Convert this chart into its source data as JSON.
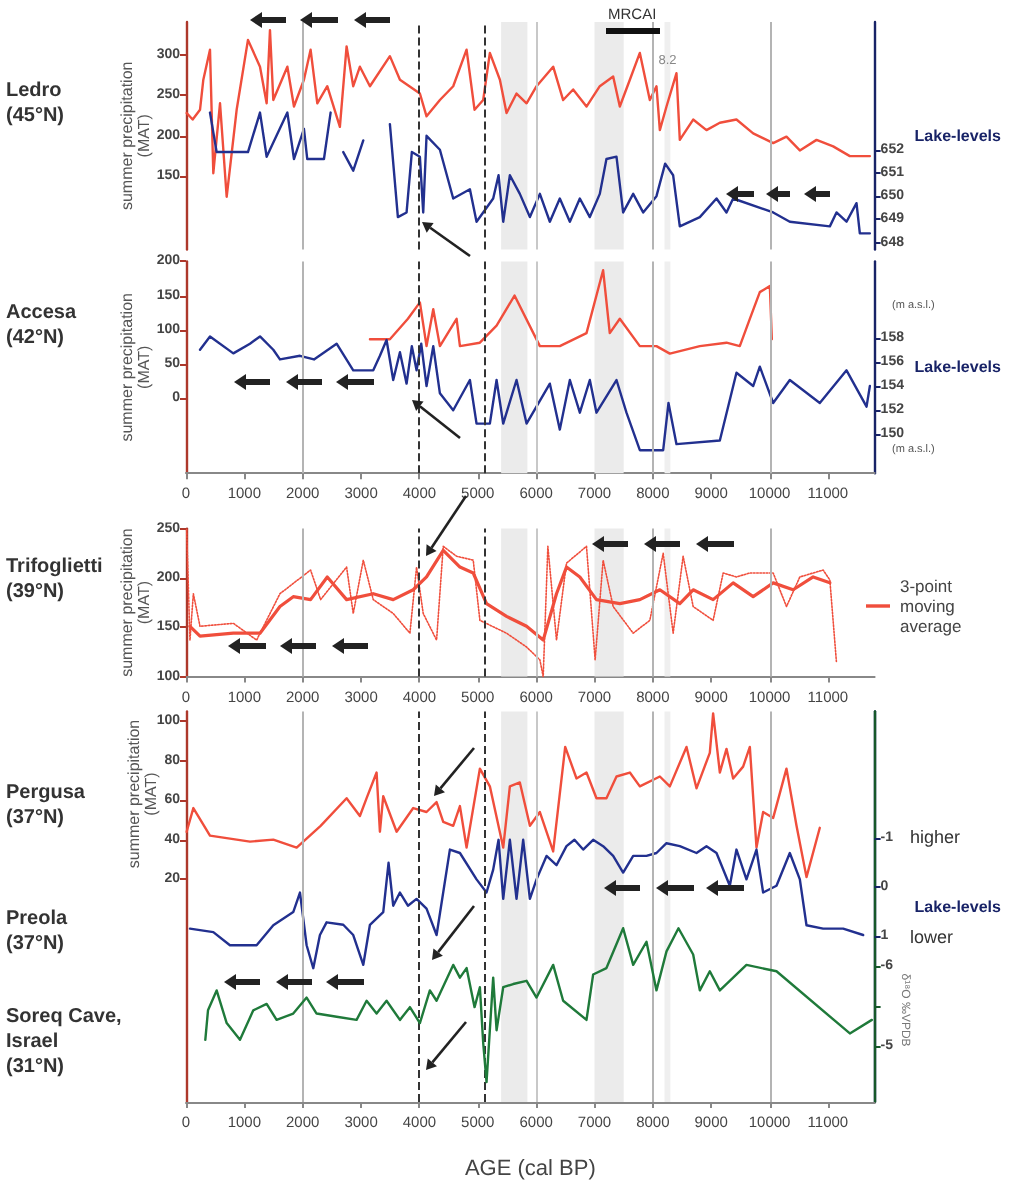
{
  "chart_data": [
    {
      "type": "line",
      "title": "Ledro (45°N)",
      "ylabel": "summer precipitation (MAT)",
      "y2label": "Lake-levels",
      "annotations": [
        "MRCAI"
      ],
      "tick_labels": "y",
      "xlim": [
        0,
        11800
      ],
      "ylim": [
        60,
        340
      ],
      "yticks": [
        150,
        200,
        250,
        300
      ],
      "y2lim": [
        647.7,
        657.5
      ],
      "y2ticks": [
        648,
        649,
        650,
        651,
        652
      ],
      "series": [
        {
          "color": "#f04e3c",
          "x": [
            11,
            114,
            240,
            297,
            411,
            468,
            583,
            697,
            868,
            1062,
            1268,
            1382,
            1439,
            1496,
            1737,
            1850,
            2021,
            2135,
            2250,
            2421,
            2637,
            2752,
            2866,
            2980,
            3152,
            3494,
            3666,
            4008,
            4122,
            4351,
            4579,
            4808,
            4945,
            5093,
            5207,
            5379,
            5493,
            5664,
            5836,
            6007,
            6292,
            6463,
            6634,
            6863,
            7091,
            7320,
            7434,
            7606,
            7777,
            7948,
            8062,
            8120,
            8234,
            8405,
            8462,
            8691,
            8919,
            9148,
            9433,
            9719,
            10062,
            10290,
            10519,
            10805,
            11090,
            11376,
            11719
          ],
          "values": [
            228,
            220,
            232,
            269,
            306,
            154,
            240,
            125,
            232,
            318,
            285,
            240,
            330,
            244,
            285,
            236,
            269,
            306,
            240,
            261,
            211,
            310,
            261,
            285,
            261,
            298,
            269,
            252,
            224,
            244,
            261,
            306,
            232,
            244,
            302,
            269,
            228,
            252,
            240,
            261,
            285,
            244,
            257,
            236,
            261,
            273,
            236,
            269,
            302,
            244,
            261,
            207,
            236,
            277,
            195,
            220,
            207,
            216,
            220,
            203,
            191,
            199,
            182,
            195,
            187,
            175,
            175
          ]
        },
        {
          "color": "#22308f",
          "axis": "y2",
          "x": [
            411,
            525,
            1062,
            1268,
            1382,
            1737,
            1850,
            2021,
            2078,
            2364,
            2478,
            2580,
            2695,
            2866,
            3038,
            3250,
            3494,
            3631,
            3780,
            3870,
            4008,
            4065,
            4122,
            4351,
            4579,
            4865,
            4979,
            5264,
            5356,
            5436,
            5550,
            5721,
            5893,
            6064,
            6235,
            6406,
            6578,
            6749,
            6920,
            7091,
            7205,
            7377,
            7491,
            7663,
            7834,
            8062,
            8211,
            8348,
            8462,
            8805,
            9091,
            9262,
            9376,
            10062,
            10347,
            11033,
            11147,
            11319,
            11490,
            11547,
            11719
          ],
          "values": [
            653.6,
            651.9,
            651.9,
            653.6,
            651.7,
            653.6,
            651.6,
            652.9,
            651.6,
            651.6,
            653.6,
            null,
            651.9,
            651.1,
            652.4,
            null,
            653.1,
            649.1,
            649.3,
            651.9,
            651.7,
            649.3,
            652.6,
            652,
            649.9,
            650.3,
            648.9,
            649.9,
            650.9,
            648.9,
            650.9,
            650.1,
            649.1,
            650.1,
            648.9,
            649.9,
            648.9,
            649.9,
            649.1,
            650.1,
            651.6,
            651.7,
            649.3,
            650.1,
            649.3,
            650,
            651.4,
            650.9,
            648.7,
            649.1,
            649.9,
            649.3,
            649.9,
            649.3,
            648.9,
            648.7,
            649.3,
            648.9,
            649.7,
            648.4,
            648.4
          ]
        }
      ],
      "ref_lines": [
        {
          "axis": "x",
          "value": 2000,
          "color": "#b4b4b4"
        },
        {
          "axis": "x",
          "value": 6000,
          "color": "#c8c8c8"
        },
        {
          "axis": "x",
          "value": 8000,
          "color": "#b4b4b4"
        },
        {
          "axis": "x",
          "value": 10000,
          "color": "#b4b4b4"
        },
        {
          "axis": "x",
          "value": 4000,
          "color": "#333333",
          "line_style": "dashed"
        },
        {
          "axis": "x",
          "value": 5100,
          "color": "#333333",
          "line_style": "dashed"
        }
      ],
      "bands": [
        {
          "axis": "x",
          "from": 5400,
          "to": 5850,
          "color": "#ebebeb"
        },
        {
          "axis": "x",
          "from": 7000,
          "to": 7500,
          "color": "#ebebeb"
        },
        {
          "axis": "x",
          "from": 8200,
          "to": 8300,
          "color": "#efefef",
          "label": "8.2"
        }
      ]
    },
    {
      "type": "line",
      "title": "Accesa (42°N)",
      "ylabel": "summer precipitation (MAT)",
      "y2label": "Lake-levels",
      "annotations": [
        "(m a.s.l.)",
        "(m a.s.l.)"
      ],
      "xlim": [
        0,
        11800
      ],
      "xticks": [
        0,
        1000,
        2000,
        3000,
        4000,
        5000,
        6000,
        7000,
        8000,
        9000,
        10000,
        11000
      ],
      "ylim": [
        -110,
        200
      ],
      "yticks": [
        0,
        50,
        100,
        150,
        200
      ],
      "y2lim": [
        146.8,
        164.3
      ],
      "y2ticks": [
        150,
        152,
        154,
        156,
        158
      ],
      "series": [
        {
          "color": "#f04e3c",
          "x": [
            3152,
            3494,
            3803,
            4008,
            4122,
            4237,
            4351,
            4637,
            4694,
            5036,
            5322,
            5630,
            6064,
            6406,
            6863,
            7148,
            7262,
            7434,
            7777,
            8062,
            8291,
            8805,
            9262,
            9490,
            9662,
            9833,
            10005,
            10039
          ],
          "values": [
            86,
            86,
            116,
            140,
            76,
            130,
            76,
            116,
            76,
            81,
            106,
            150,
            76,
            76,
            95,
            187,
            95,
            116,
            76,
            76,
            65,
            76,
            81,
            76,
            116,
            155,
            164,
            86
          ]
        },
        {
          "color": "#22308f",
          "axis": "y2",
          "x": [
            240,
            411,
            811,
            1096,
            1268,
            1496,
            1610,
            1953,
            2193,
            2581,
            2866,
            3209,
            3323,
            3437,
            3551,
            3666,
            3780,
            3870,
            3951,
            4031,
            4122,
            4237,
            4351,
            4579,
            4865,
            4979,
            5207,
            5322,
            5436,
            5664,
            5836,
            6235,
            6406,
            6578,
            6749,
            6920,
            7034,
            7377,
            7548,
            7777,
            8177,
            8268,
            8405,
            9148,
            9433,
            9719,
            9833,
            10062,
            10347,
            10861,
            11319,
            11662,
            11719
          ],
          "values": [
            157,
            158.1,
            156.7,
            157.5,
            158.1,
            157,
            156.2,
            156.5,
            156.2,
            157.5,
            155.3,
            155.3,
            156.5,
            157.8,
            154.5,
            156.8,
            154.2,
            157.3,
            155.3,
            157.5,
            154,
            157.3,
            153.4,
            152,
            154.5,
            150.9,
            150.9,
            154.5,
            150.9,
            154.5,
            150.9,
            154.2,
            150.4,
            154.5,
            151.8,
            154.5,
            151.8,
            154.5,
            151.8,
            148.7,
            148.7,
            152.6,
            149.2,
            149.5,
            155.1,
            154,
            155.6,
            152.6,
            154.5,
            152.6,
            155.3,
            152.3,
            154
          ]
        }
      ],
      "ref_lines": [
        {
          "axis": "x",
          "value": 2000,
          "color": "#b4b4b4"
        },
        {
          "axis": "x",
          "value": 6000,
          "color": "#c8c8c8"
        },
        {
          "axis": "x",
          "value": 8000,
          "color": "#b4b4b4"
        },
        {
          "axis": "x",
          "value": 10000,
          "color": "#b4b4b4"
        },
        {
          "axis": "x",
          "value": 4000,
          "color": "#333333",
          "line_style": "dashed"
        },
        {
          "axis": "x",
          "value": 5100,
          "color": "#333333",
          "line_style": "dashed"
        }
      ],
      "bands": [
        {
          "axis": "x",
          "from": 5400,
          "to": 5850,
          "color": "#ebebeb"
        },
        {
          "axis": "x",
          "from": 7000,
          "to": 7500,
          "color": "#ebebeb"
        },
        {
          "axis": "x",
          "from": 8200,
          "to": 8300,
          "color": "#efefef"
        }
      ]
    },
    {
      "type": "line",
      "title": "Trifoglietti (39°N)",
      "ylabel": "summer precipitation (MAT)",
      "legend": "right",
      "xlim": [
        0,
        11800
      ],
      "xticks": [
        0,
        1000,
        2000,
        3000,
        4000,
        5000,
        6000,
        7000,
        8000,
        9000,
        10000,
        11000
      ],
      "ylim": [
        100,
        250
      ],
      "yticks": [
        100,
        150,
        200,
        250
      ],
      "series": [
        {
          "color": "#f04e3c",
          "line_style": "dotted",
          "x": [
            11,
            68,
            126,
            240,
            811,
            1210,
            1610,
            2135,
            2307,
            2752,
            2866,
            3038,
            3209,
            3551,
            3837,
            3951,
            4065,
            4294,
            4408,
            4637,
            4922,
            5036,
            5493,
            5836,
            6064,
            6121,
            6201,
            6349,
            6520,
            6863,
            7011,
            7148,
            7320,
            7663,
            7948,
            8177,
            8348,
            8519,
            8691,
            9033,
            9205,
            9433,
            9662,
            10062,
            10290,
            10519,
            10918,
            11033,
            11147
          ],
          "values": [
            249,
            137,
            184,
            151,
            154,
            137,
            184,
            208,
            178,
            211,
            164,
            218,
            178,
            164,
            144,
            211,
            164,
            137,
            232,
            222,
            218,
            157,
            144,
            130,
            117,
            100,
            232,
            137,
            215,
            232,
            117,
            218,
            171,
            144,
            157,
            225,
            144,
            222,
            171,
            157,
            205,
            201,
            205,
            205,
            171,
            201,
            208,
            198,
            114
          ]
        },
        {
          "name": "3-point moving average",
          "color": "#f04e3c",
          "x": [
            68,
            240,
            811,
            1268,
            1610,
            1838,
            2135,
            2421,
            2752,
            3209,
            3551,
            3894,
            4122,
            4408,
            4694,
            4922,
            5150,
            5493,
            5836,
            6121,
            6349,
            6520,
            6749,
            7034,
            7434,
            7777,
            8120,
            8462,
            8691,
            9033,
            9376,
            9719,
            10062,
            10404,
            10747,
            11033
          ],
          "values": [
            151,
            141,
            144,
            144,
            171,
            181,
            178,
            201,
            178,
            184,
            178,
            188,
            201,
            228,
            211,
            205,
            174,
            161,
            151,
            137,
            184,
            211,
            201,
            178,
            174,
            178,
            188,
            174,
            188,
            178,
            195,
            181,
            195,
            188,
            201,
            195
          ]
        }
      ],
      "ref_lines": [
        {
          "axis": "x",
          "value": 2000,
          "color": "#b4b4b4"
        },
        {
          "axis": "x",
          "value": 6000,
          "color": "#c8c8c8"
        },
        {
          "axis": "x",
          "value": 8000,
          "color": "#b4b4b4"
        },
        {
          "axis": "x",
          "value": 10000,
          "color": "#b4b4b4"
        },
        {
          "axis": "x",
          "value": 4000,
          "color": "#333333",
          "line_style": "dashed"
        },
        {
          "axis": "x",
          "value": 5100,
          "color": "#333333",
          "line_style": "dashed"
        }
      ],
      "bands": [
        {
          "axis": "x",
          "from": 5400,
          "to": 5850,
          "color": "#ebebeb"
        },
        {
          "axis": "x",
          "from": 7000,
          "to": 7500,
          "color": "#ebebeb"
        },
        {
          "axis": "x",
          "from": 8200,
          "to": 8300,
          "color": "#efefef"
        }
      ]
    },
    {
      "type": "line",
      "xlabel": "AGE (cal BP)",
      "ylabel": "summer precipitation (MAT)",
      "y2label": "Lake-levels",
      "y3label": "δ¹⁸O ‰VPDB",
      "annotations": [
        "Pergusa (37°N)",
        "Preola (37°N)",
        "Soreq Cave, Israel (31°N)",
        "higher",
        "lower"
      ],
      "xlim": [
        0,
        11800
      ],
      "xticks": [
        0,
        1000,
        2000,
        3000,
        4000,
        5000,
        6000,
        7000,
        8000,
        9000,
        10000,
        11000
      ],
      "ylim": [
        -93,
        105
      ],
      "yticks": [
        20,
        40,
        60,
        80,
        100
      ],
      "y2lim": [
        4.4,
        -3.6
      ],
      "y2ticks": [
        -1,
        0,
        1
      ],
      "y3lim": [
        -4.3,
        -9.2
      ],
      "y3ticks": [
        -6,
        {
          "value": -5.5,
          "label": null
        },
        -5
      ],
      "series": [
        {
          "color": "#f04e3c",
          "x": [
            11,
            126,
            411,
            1096,
            1496,
            1896,
            2307,
            2752,
            2980,
            3095,
            3266,
            3323,
            3380,
            3609,
            3894,
            4122,
            4294,
            4408,
            4579,
            4694,
            4808,
            5036,
            5207,
            5436,
            5550,
            5721,
            5893,
            6064,
            6292,
            6498,
            6692,
            6863,
            7034,
            7205,
            7377,
            7606,
            7777,
            8120,
            8291,
            8577,
            8748,
            8976,
            9033,
            9148,
            9262,
            9376,
            9547,
            9662,
            9776,
            9890,
            10062,
            10290,
            10462,
            10633,
            10861
          ],
          "values": [
            44,
            56,
            42,
            39,
            40,
            36,
            47,
            61,
            52,
            61,
            74,
            44,
            62,
            44,
            56,
            54,
            59,
            49,
            47,
            57,
            36,
            76,
            67,
            36,
            67,
            69,
            47,
            54,
            34,
            87,
            71,
            74,
            61,
            61,
            72,
            74,
            67,
            72,
            67,
            87,
            66,
            84,
            104,
            74,
            86,
            71,
            77,
            87,
            36,
            54,
            51,
            76,
            47,
            21,
            46
          ]
        },
        {
          "color": "#22308f",
          "axis": "y2",
          "x": [
            68,
            468,
            753,
            1210,
            1496,
            1838,
            1953,
            2067,
            2181,
            2295,
            2409,
            2695,
            2866,
            3038,
            3152,
            3380,
            3471,
            3551,
            3666,
            3803,
            3951,
            4122,
            4294,
            4522,
            4694,
            4979,
            5150,
            5264,
            5356,
            5436,
            5550,
            5664,
            5778,
            5893,
            6007,
            6178,
            6349,
            6520,
            6657,
            6806,
            6977,
            7148,
            7320,
            7491,
            7663,
            7891,
            8062,
            8234,
            8462,
            8748,
            8919,
            9091,
            9319,
            9433,
            9604,
            9776,
            9890,
            10119,
            10347,
            10519,
            10633,
            10918,
            11261,
            11604
          ],
          "values": [
            0.85,
            0.92,
            1.19,
            1.19,
            0.78,
            0.51,
            0.11,
            1.19,
            1.66,
            0.98,
            0.72,
            0.77,
            0.98,
            1.59,
            0.77,
            0.51,
            -0.5,
            0.38,
            0.11,
            0.38,
            0.24,
            0.44,
            0.98,
            -0.77,
            -0.7,
            -0.16,
            0.11,
            -0.36,
            -0.97,
            0.24,
            -0.97,
            0.24,
            -0.97,
            0.24,
            -0.16,
            -0.64,
            -0.45,
            -0.84,
            -0.97,
            -0.77,
            -0.97,
            -0.84,
            -0.64,
            -0.3,
            -0.64,
            -0.64,
            -0.7,
            -0.9,
            -0.84,
            -0.7,
            -0.84,
            -0.7,
            -0.03,
            -0.77,
            -0.16,
            -0.77,
            0.11,
            -0.03,
            -0.7,
            -0.16,
            0.78,
            0.85,
            0.85,
            0.98
          ]
        },
        {
          "color": "#1f7a3a",
          "axis": "y3",
          "x": [
            331,
            377,
            525,
            697,
            925,
            1153,
            1382,
            1553,
            1838,
            2067,
            2238,
            2581,
            2923,
            3095,
            3266,
            3437,
            3666,
            3837,
            4008,
            4179,
            4294,
            4579,
            4694,
            4808,
            4945,
            5036,
            5093,
            5150,
            5264,
            5322,
            5436,
            5607,
            5836,
            6007,
            6292,
            6463,
            6863,
            6977,
            7205,
            7491,
            7663,
            7891,
            8062,
            8234,
            8439,
            8691,
            8805,
            8976,
            9148,
            9604,
            10119,
            11376,
            11753
          ],
          "values": [
            -5.08,
            -5.45,
            -5.7,
            -5.29,
            -5.08,
            -5.45,
            -5.53,
            -5.33,
            -5.41,
            -5.61,
            -5.41,
            -5.37,
            -5.33,
            -5.57,
            -5.41,
            -5.57,
            -5.33,
            -5.49,
            -5.29,
            -5.7,
            -5.57,
            -6.02,
            -5.86,
            -5.98,
            -5.49,
            -5.74,
            -5.04,
            -4.55,
            -5.86,
            -5.2,
            -5.74,
            -5.78,
            -5.82,
            -5.61,
            -6.02,
            -5.57,
            -5.33,
            -5.9,
            -5.98,
            -6.48,
            -6.02,
            -6.31,
            -5.7,
            -6.19,
            -6.48,
            -6.15,
            -5.7,
            -5.94,
            -5.7,
            -6.02,
            -5.94,
            -5.16,
            -5.33
          ]
        }
      ],
      "ref_lines": [
        {
          "axis": "x",
          "value": 2000,
          "color": "#b4b4b4"
        },
        {
          "axis": "x",
          "value": 6000,
          "color": "#c8c8c8"
        },
        {
          "axis": "x",
          "value": 8000,
          "color": "#b4b4b4"
        },
        {
          "axis": "x",
          "value": 10000,
          "color": "#b4b4b4"
        },
        {
          "axis": "x",
          "value": 4000,
          "color": "#333333",
          "line_style": "dashed"
        },
        {
          "axis": "x",
          "value": 5100,
          "color": "#333333",
          "line_style": "dashed"
        }
      ],
      "bands": [
        {
          "axis": "x",
          "from": 5400,
          "to": 5850,
          "color": "#ebebeb"
        },
        {
          "axis": "x",
          "from": 7000,
          "to": 7500,
          "color": "#ebebeb"
        },
        {
          "axis": "x",
          "from": 8200,
          "to": 8300,
          "color": "#efefef"
        }
      ]
    }
  ]
}
